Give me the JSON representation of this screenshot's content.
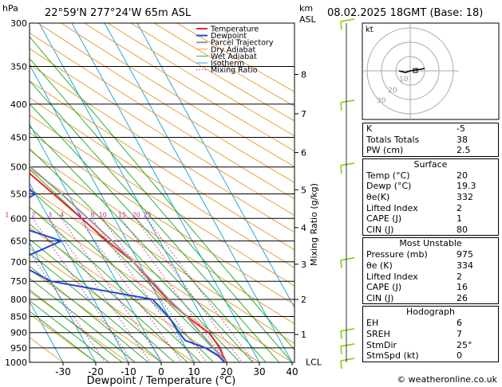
{
  "header": {
    "unit_p": "hPa",
    "location": "22°59'N  277°24'W  65m  ASL",
    "unit_km": "km",
    "unit_asl": "ASL",
    "datetime": "08.02.2025  18GMT  (Base: 18)"
  },
  "chart_data": {
    "type": "line",
    "xlabel": "Dewpoint / Temperature (°C)",
    "y2label": "Mixing Ratio (g/kg)",
    "x_ticks": [
      -30,
      -20,
      -10,
      0,
      10,
      20,
      30,
      40
    ],
    "p_ticks": [
      300,
      350,
      400,
      450,
      500,
      550,
      600,
      650,
      700,
      750,
      800,
      850,
      900,
      950,
      1000
    ],
    "km_ticks": [
      {
        "km": "1",
        "p": 906
      },
      {
        "km": "2",
        "p": 800
      },
      {
        "km": "3",
        "p": 706
      },
      {
        "km": "4",
        "p": 620
      },
      {
        "km": "5",
        "p": 542
      },
      {
        "km": "6",
        "p": 475
      },
      {
        "km": "7",
        "p": 414
      },
      {
        "km": "8",
        "p": 360
      }
    ],
    "lcl_label": "LCL",
    "mixing_ratio_labels": [
      "1",
      "2",
      "3",
      "4",
      "6",
      "8",
      "10",
      "15",
      "20",
      "25"
    ],
    "legend": [
      "Temperature",
      "Dewpoint",
      "Parcel Trajectory",
      "Dry Adiabat",
      "Wet Adiabat",
      "Isotherm",
      "Mixing Ratio"
    ],
    "series": [
      {
        "name": "Temperature",
        "color": "#ee2222",
        "points": [
          [
            1000,
            20
          ],
          [
            975,
            20
          ],
          [
            950,
            20.5
          ],
          [
            925,
            20
          ],
          [
            900,
            19.5
          ],
          [
            850,
            15.5
          ],
          [
            800,
            12.5
          ],
          [
            750,
            10.5
          ],
          [
            700,
            8.5
          ],
          [
            650,
            4
          ],
          [
            600,
            0
          ],
          [
            550,
            -4.5
          ],
          [
            500,
            -9.5
          ],
          [
            450,
            -15
          ],
          [
            400,
            -21
          ],
          [
            350,
            -28
          ],
          [
            300,
            -37
          ]
        ]
      },
      {
        "name": "Dewpoint",
        "color": "#2244dd",
        "points": [
          [
            1000,
            19.3
          ],
          [
            975,
            18.5
          ],
          [
            950,
            16
          ],
          [
            925,
            11
          ],
          [
            900,
            10.5
          ],
          [
            850,
            10
          ],
          [
            800,
            8
          ],
          [
            750,
            -20
          ],
          [
            700,
            -28
          ],
          [
            650,
            -10
          ],
          [
            600,
            -27
          ],
          [
            550,
            -10
          ],
          [
            500,
            -17
          ],
          [
            450,
            -25
          ],
          [
            400,
            -38
          ],
          [
            350,
            -52
          ],
          [
            300,
            -52
          ]
        ]
      },
      {
        "name": "Parcel Trajectory",
        "color": "#9a9a9a",
        "points": [
          [
            1000,
            20
          ],
          [
            975,
            19.2
          ],
          [
            950,
            18.5
          ],
          [
            900,
            17
          ],
          [
            850,
            15.5
          ],
          [
            800,
            13
          ],
          [
            750,
            11
          ],
          [
            700,
            8.5
          ],
          [
            650,
            5.5
          ],
          [
            600,
            2
          ],
          [
            550,
            -2
          ],
          [
            500,
            -7
          ],
          [
            450,
            -12
          ],
          [
            400,
            -18.5
          ],
          [
            350,
            -26
          ],
          [
            300,
            -35
          ]
        ]
      }
    ],
    "hodograph": {
      "label": "kt",
      "ring_labels": [
        "10",
        "20",
        "30"
      ]
    },
    "wind_barbs_p": [
      300,
      400,
      500,
      700,
      900,
      950,
      1000
    ]
  },
  "indices": [
    {
      "label": "K",
      "value": "-5"
    },
    {
      "label": "Totals Totals",
      "value": "38"
    },
    {
      "label": "PW (cm)",
      "value": "2.5"
    }
  ],
  "surface": {
    "title": "Surface",
    "rows": [
      {
        "label": "Temp (°C)",
        "value": "20"
      },
      {
        "label": "Dewp (°C)",
        "value": "19.3"
      },
      {
        "label": "θe(K)",
        "value": "332"
      },
      {
        "label": "Lifted Index",
        "value": "2"
      },
      {
        "label": "CAPE (J)",
        "value": "1"
      },
      {
        "label": "CIN (J)",
        "value": "80"
      }
    ]
  },
  "most_unstable": {
    "title": "Most Unstable",
    "rows": [
      {
        "label": "Pressure (mb)",
        "value": "975"
      },
      {
        "label": "θe (K)",
        "value": "334"
      },
      {
        "label": "Lifted Index",
        "value": "2"
      },
      {
        "label": "CAPE (J)",
        "value": "16"
      },
      {
        "label": "CIN (J)",
        "value": "26"
      }
    ]
  },
  "hodograph_table": {
    "title": "Hodograph",
    "rows": [
      {
        "label": "EH",
        "value": "6"
      },
      {
        "label": "SREH",
        "value": "7"
      },
      {
        "label": "StmDir",
        "value": "25°"
      },
      {
        "label": "StmSpd (kt)",
        "value": "0"
      }
    ]
  },
  "footer": "© weatheronline.co.uk"
}
